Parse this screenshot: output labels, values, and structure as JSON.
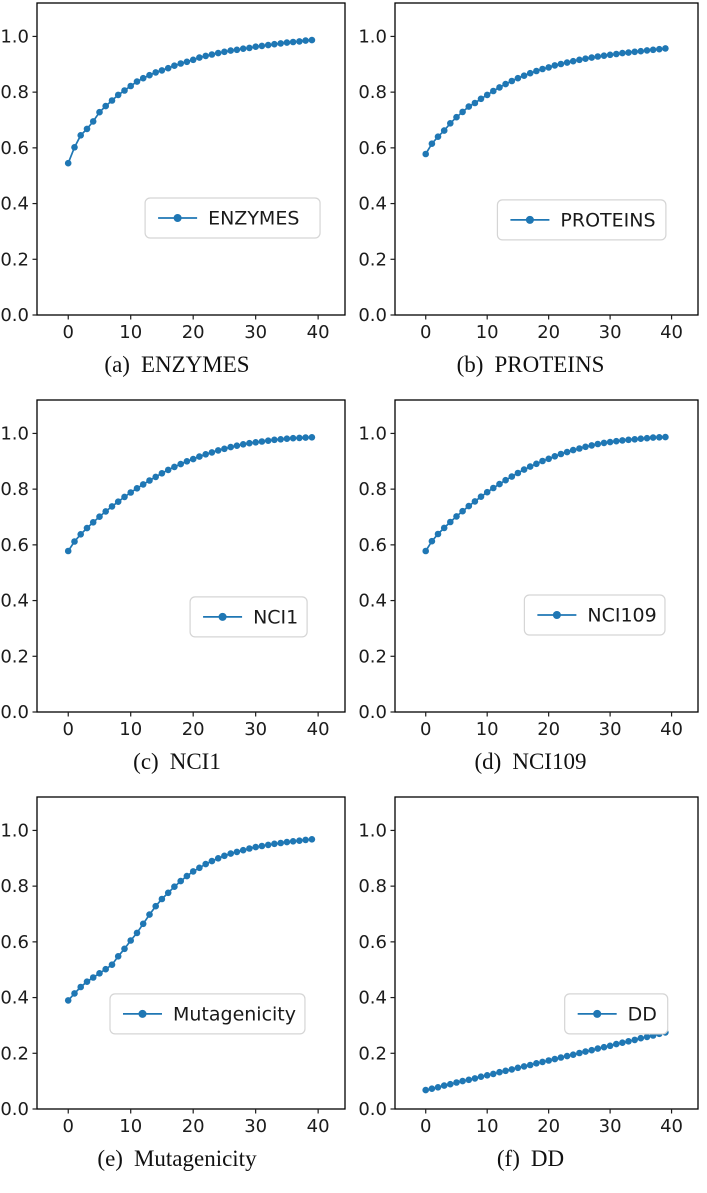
{
  "figure": {
    "background": "#ffffff",
    "accent_color": "#1f77b4",
    "layout": "3x2 subplot grid of line charts",
    "grid_lines": "off"
  },
  "axes": {
    "xlim": [
      -5,
      44.3
    ],
    "ylim": [
      0,
      1.12
    ],
    "xticks": [
      0,
      10,
      20,
      30,
      40
    ],
    "xtick_labels": [
      "0",
      "10",
      "20",
      "30",
      "40"
    ],
    "yticks": [
      0.0,
      0.2,
      0.4,
      0.6,
      0.8,
      1.0
    ],
    "ytick_labels": [
      "0.0",
      "0.2",
      "0.4",
      "0.6",
      "0.8",
      "1.0"
    ],
    "x": [
      0,
      1,
      2,
      3,
      4,
      5,
      6,
      7,
      8,
      9,
      10,
      11,
      12,
      13,
      14,
      15,
      16,
      17,
      18,
      19,
      20,
      21,
      22,
      23,
      24,
      25,
      26,
      27,
      28,
      29,
      30,
      31,
      32,
      33,
      34,
      35,
      36,
      37,
      38,
      39
    ]
  },
  "chart_data": [
    {
      "type": "line",
      "label": "ENZYMES",
      "caption_index": "(a)",
      "caption_label": "ENZYMES",
      "line_color": "#1f77b4",
      "marker": "circle",
      "legend_location": "center right",
      "legend": {
        "fx": 0.351,
        "fy": 0.625,
        "fw": 0.568
      },
      "values": [
        0.545,
        0.602,
        0.645,
        0.668,
        0.695,
        0.728,
        0.75,
        0.77,
        0.79,
        0.806,
        0.822,
        0.838,
        0.85,
        0.861,
        0.871,
        0.878,
        0.886,
        0.895,
        0.903,
        0.909,
        0.916,
        0.924,
        0.93,
        0.935,
        0.94,
        0.945,
        0.949,
        0.952,
        0.956,
        0.959,
        0.963,
        0.966,
        0.969,
        0.972,
        0.975,
        0.978,
        0.98,
        0.982,
        0.985,
        0.987
      ]
    },
    {
      "type": "line",
      "label": "PROTEINS",
      "caption_index": "(b)",
      "caption_label": "PROTEINS",
      "line_color": "#1f77b4",
      "marker": "circle",
      "legend_location": "center right",
      "legend": {
        "fx": 0.338,
        "fy": 0.631,
        "fw": 0.556
      },
      "values": [
        0.578,
        0.615,
        0.64,
        0.662,
        0.688,
        0.71,
        0.729,
        0.748,
        0.761,
        0.776,
        0.79,
        0.804,
        0.817,
        0.829,
        0.84,
        0.85,
        0.859,
        0.868,
        0.876,
        0.883,
        0.889,
        0.896,
        0.901,
        0.906,
        0.911,
        0.916,
        0.92,
        0.924,
        0.928,
        0.931,
        0.934,
        0.937,
        0.94,
        0.942,
        0.945,
        0.947,
        0.95,
        0.952,
        0.954,
        0.957
      ]
    },
    {
      "type": "line",
      "label": "NCI1",
      "caption_index": "(c)",
      "caption_label": "NCI1",
      "line_color": "#1f77b4",
      "marker": "circle",
      "legend_location": "center right",
      "legend": {
        "fx": 0.497,
        "fy": 0.631,
        "fw": 0.38
      },
      "values": [
        0.578,
        0.612,
        0.638,
        0.66,
        0.681,
        0.701,
        0.72,
        0.738,
        0.755,
        0.772,
        0.788,
        0.803,
        0.817,
        0.831,
        0.844,
        0.857,
        0.869,
        0.88,
        0.89,
        0.9,
        0.908,
        0.917,
        0.925,
        0.932,
        0.939,
        0.945,
        0.951,
        0.956,
        0.961,
        0.965,
        0.968,
        0.971,
        0.974,
        0.977,
        0.979,
        0.981,
        0.983,
        0.984,
        0.985,
        0.986
      ]
    },
    {
      "type": "line",
      "label": "NCI109",
      "caption_index": "(d)",
      "caption_label": "NCI109",
      "line_color": "#1f77b4",
      "marker": "circle",
      "legend_location": "center right",
      "legend": {
        "fx": 0.427,
        "fy": 0.625,
        "fw": 0.464
      },
      "values": [
        0.578,
        0.613,
        0.639,
        0.661,
        0.682,
        0.702,
        0.721,
        0.739,
        0.756,
        0.773,
        0.789,
        0.804,
        0.818,
        0.832,
        0.845,
        0.858,
        0.87,
        0.881,
        0.891,
        0.901,
        0.909,
        0.918,
        0.926,
        0.933,
        0.94,
        0.946,
        0.952,
        0.957,
        0.962,
        0.966,
        0.969,
        0.972,
        0.975,
        0.977,
        0.979,
        0.981,
        0.983,
        0.985,
        0.986,
        0.987
      ]
    },
    {
      "type": "line",
      "label": "Mutagenicity",
      "caption_index": "(e)",
      "caption_label": "Mutagenicity",
      "line_color": "#1f77b4",
      "marker": "circle",
      "legend_location": "lower center",
      "legend": {
        "fx": 0.237,
        "fy": 0.631,
        "fw": 0.633
      },
      "values": [
        0.39,
        0.415,
        0.438,
        0.457,
        0.472,
        0.487,
        0.502,
        0.518,
        0.548,
        0.575,
        0.605,
        0.632,
        0.665,
        0.698,
        0.728,
        0.754,
        0.776,
        0.798,
        0.818,
        0.836,
        0.853,
        0.866,
        0.879,
        0.89,
        0.9,
        0.909,
        0.917,
        0.923,
        0.929,
        0.935,
        0.94,
        0.944,
        0.948,
        0.952,
        0.955,
        0.958,
        0.961,
        0.963,
        0.966,
        0.968
      ]
    },
    {
      "type": "line",
      "label": "DD",
      "caption_index": "(f)",
      "caption_label": "DD",
      "line_color": "#1f77b4",
      "marker": "circle",
      "legend_location": "center right",
      "legend": {
        "fx": 0.56,
        "fy": 0.631,
        "fw": 0.34
      },
      "values": [
        0.068,
        0.073,
        0.078,
        0.084,
        0.089,
        0.095,
        0.1,
        0.105,
        0.11,
        0.116,
        0.121,
        0.126,
        0.132,
        0.137,
        0.142,
        0.148,
        0.153,
        0.158,
        0.164,
        0.169,
        0.174,
        0.179,
        0.185,
        0.19,
        0.195,
        0.201,
        0.206,
        0.211,
        0.217,
        0.222,
        0.227,
        0.233,
        0.238,
        0.243,
        0.248,
        0.254,
        0.259,
        0.264,
        0.27,
        0.275
      ]
    }
  ]
}
